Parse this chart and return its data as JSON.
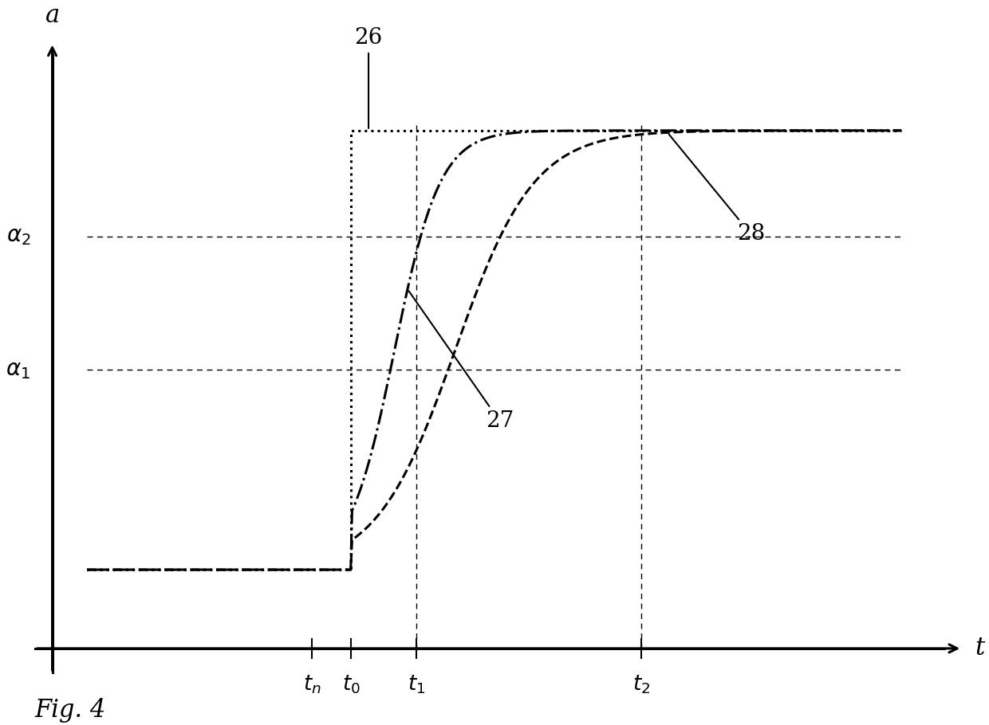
{
  "background_color": "#ffffff",
  "axis_color": "#000000",
  "t_n": 0.3,
  "t_0": 0.345,
  "t_1": 0.42,
  "t_2": 0.68,
  "a_low": 0.13,
  "a_1": 0.46,
  "a_2": 0.68,
  "a_max": 0.855,
  "label_26": "26",
  "label_27": "27",
  "label_28": "28",
  "label_fig": "Fig. 4",
  "xlabel": "t",
  "ylabel": "a"
}
